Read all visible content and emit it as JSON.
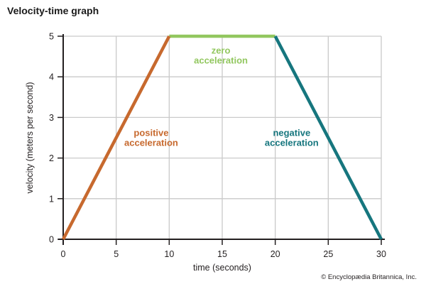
{
  "title": "Velocity-time graph",
  "copyright": "© Encyclopædia Britannica, Inc.",
  "colors": {
    "positive": "#c7692e",
    "zero": "#92c75f",
    "negative": "#16767e",
    "grid": "#cacaca",
    "axis": "#231f20",
    "tick_text": "#231f20"
  },
  "chart_data": {
    "type": "line",
    "title": "Velocity-time graph",
    "xlabel": "time (seconds)",
    "ylabel": "velocity (meters per second)",
    "xlim": [
      0,
      30
    ],
    "ylim": [
      0,
      5
    ],
    "xticks": [
      0,
      5,
      10,
      15,
      20,
      25,
      30
    ],
    "yticks": [
      0,
      1,
      2,
      3,
      4,
      5
    ],
    "grid": true,
    "legend": "none",
    "series": [
      {
        "name": "positive acceleration",
        "color": "#c7692e",
        "points": [
          [
            0,
            0
          ],
          [
            10,
            5
          ]
        ]
      },
      {
        "name": "zero acceleration",
        "color": "#92c75f",
        "points": [
          [
            10,
            5
          ],
          [
            20,
            5
          ]
        ]
      },
      {
        "name": "negative acceleration",
        "color": "#16767e",
        "points": [
          [
            20,
            5
          ],
          [
            30,
            0
          ]
        ]
      }
    ],
    "annotations": [
      {
        "id": "positive-acceleration",
        "lines": [
          "positive",
          "acceleration"
        ],
        "color": "#c7692e",
        "x": 8.3,
        "y": 2.54
      },
      {
        "id": "zero-acceleration",
        "lines": [
          "zero",
          "acceleration"
        ],
        "color": "#92c75f",
        "x": 14.87,
        "y": 4.57
      },
      {
        "id": "negative-acceleration",
        "lines": [
          "negative",
          "acceleration"
        ],
        "color": "#16767e",
        "x": 21.55,
        "y": 2.54
      }
    ]
  }
}
